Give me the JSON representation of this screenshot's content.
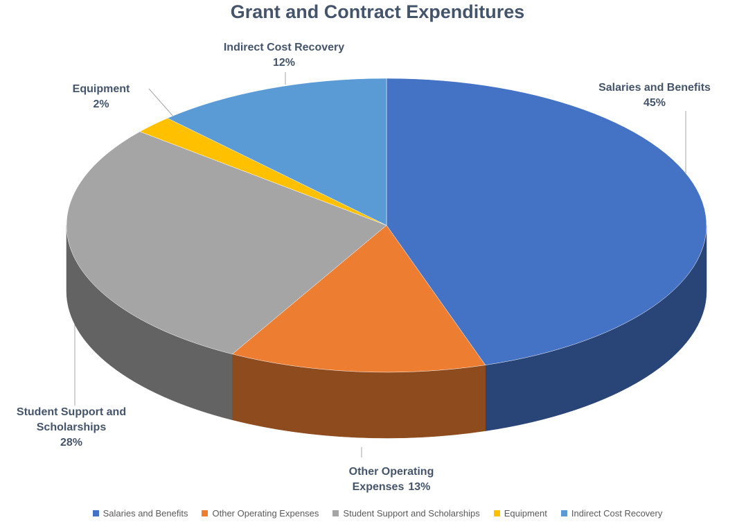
{
  "chart_data": {
    "type": "pie",
    "title": "Grant and Contract Expenditures",
    "categories": [
      "Salaries and Benefits",
      "Other Operating Expenses",
      "Student Support and Scholarships",
      "Equipment",
      "Indirect Cost Recovery"
    ],
    "values": [
      45,
      13,
      28,
      2,
      12
    ],
    "value_labels": [
      "45%",
      "13%",
      "28%",
      "2%",
      "12%"
    ],
    "colors": [
      "#4472c4",
      "#ed7d31",
      "#a5a5a5",
      "#ffc000",
      "#5b9bd5"
    ],
    "legend": "bottom"
  }
}
